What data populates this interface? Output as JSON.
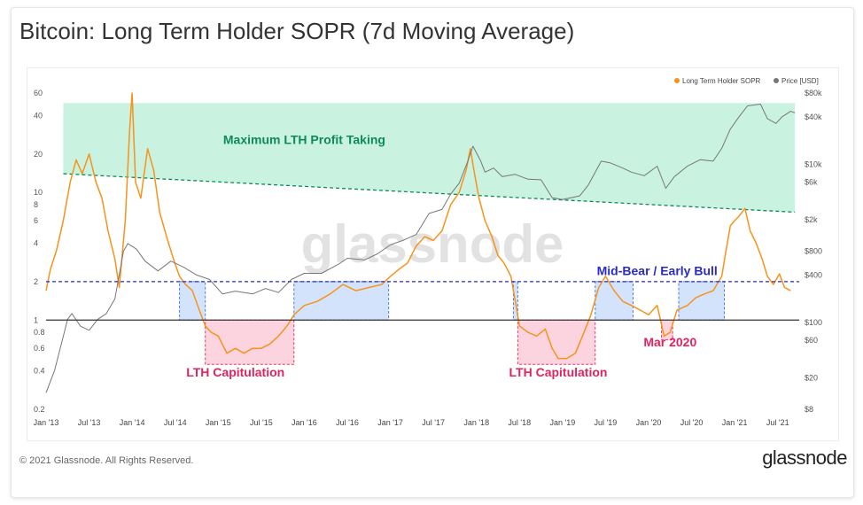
{
  "title": "Bitcoin: Long Term Holder SOPR (7d Moving Average)",
  "footer": "© 2021 Glassnode. All Rights Reserved.",
  "brand": "glassnode",
  "watermark": "glassnode",
  "chart_data": {
    "type": "line",
    "x_ticks": [
      "Jan '13",
      "Jul '13",
      "Jan '14",
      "Jul '14",
      "Jan '15",
      "Jul '15",
      "Jan '16",
      "Jul '16",
      "Jan '17",
      "Jul '17",
      "Jan '18",
      "Jul '18",
      "Jan '19",
      "Jul '19",
      "Jan '20",
      "Jul '20",
      "Jan '21",
      "Jul '21"
    ],
    "y_left_ticks": [
      "60",
      "40",
      "20",
      "10",
      "8",
      "6",
      "4",
      "2",
      "1",
      "0.8",
      "0.6",
      "0.4",
      "0.2"
    ],
    "y_left_scale": "log",
    "y_left_range": [
      0.2,
      60
    ],
    "y_right_ticks": [
      "$80k",
      "$40k",
      "$10k",
      "$6k",
      "$2k",
      "$800",
      "$400",
      "$100",
      "$60",
      "$20",
      "$8"
    ],
    "y_right_scale": "log",
    "y_right_range": [
      8,
      80000
    ],
    "legend": {
      "placement": "top-right",
      "entries": [
        "Long Term Holder SOPR",
        "Price [USD]"
      ]
    },
    "series": [
      {
        "name": "Long Term Holder SOPR",
        "color": "#f7931a",
        "values": [
          [
            2013.0,
            1.7
          ],
          [
            2013.05,
            2.5
          ],
          [
            2013.12,
            3.5
          ],
          [
            2013.2,
            6
          ],
          [
            2013.28,
            12
          ],
          [
            2013.35,
            18
          ],
          [
            2013.42,
            14
          ],
          [
            2013.5,
            20
          ],
          [
            2013.58,
            12
          ],
          [
            2013.65,
            9
          ],
          [
            2013.72,
            5
          ],
          [
            2013.8,
            3
          ],
          [
            2013.85,
            1.8
          ],
          [
            2013.92,
            6
          ],
          [
            2013.97,
            30
          ],
          [
            2014.0,
            60
          ],
          [
            2014.04,
            12
          ],
          [
            2014.1,
            9
          ],
          [
            2014.18,
            22
          ],
          [
            2014.25,
            15
          ],
          [
            2014.32,
            7
          ],
          [
            2014.4,
            4.5
          ],
          [
            2014.48,
            3
          ],
          [
            2014.55,
            2.2
          ],
          [
            2014.62,
            1.9
          ],
          [
            2014.7,
            1.7
          ],
          [
            2014.78,
            1.2
          ],
          [
            2014.85,
            0.9
          ],
          [
            2014.92,
            0.8
          ],
          [
            2015.0,
            0.75
          ],
          [
            2015.1,
            0.55
          ],
          [
            2015.2,
            0.6
          ],
          [
            2015.3,
            0.55
          ],
          [
            2015.4,
            0.6
          ],
          [
            2015.5,
            0.6
          ],
          [
            2015.6,
            0.65
          ],
          [
            2015.7,
            0.75
          ],
          [
            2015.8,
            0.9
          ],
          [
            2015.88,
            1.1
          ],
          [
            2016.0,
            1.3
          ],
          [
            2016.15,
            1.4
          ],
          [
            2016.3,
            1.6
          ],
          [
            2016.45,
            1.9
          ],
          [
            2016.6,
            1.7
          ],
          [
            2016.75,
            1.8
          ],
          [
            2016.9,
            1.9
          ],
          [
            2017.0,
            2.2
          ],
          [
            2017.1,
            2.5
          ],
          [
            2017.2,
            2.8
          ],
          [
            2017.3,
            3.8
          ],
          [
            2017.4,
            4.5
          ],
          [
            2017.5,
            4.2
          ],
          [
            2017.6,
            5
          ],
          [
            2017.7,
            8
          ],
          [
            2017.8,
            10
          ],
          [
            2017.88,
            15
          ],
          [
            2017.93,
            22
          ],
          [
            2017.97,
            15
          ],
          [
            2018.03,
            9
          ],
          [
            2018.1,
            6
          ],
          [
            2018.18,
            4.5
          ],
          [
            2018.25,
            3.2
          ],
          [
            2018.32,
            2.8
          ],
          [
            2018.4,
            2.2
          ],
          [
            2018.46,
            1.3
          ],
          [
            2018.5,
            0.9
          ],
          [
            2018.6,
            0.8
          ],
          [
            2018.7,
            0.75
          ],
          [
            2018.8,
            0.85
          ],
          [
            2018.88,
            0.6
          ],
          [
            2018.95,
            0.5
          ],
          [
            2019.05,
            0.5
          ],
          [
            2019.15,
            0.55
          ],
          [
            2019.25,
            0.8
          ],
          [
            2019.33,
            1.1
          ],
          [
            2019.42,
            1.8
          ],
          [
            2019.5,
            2.2
          ],
          [
            2019.6,
            1.7
          ],
          [
            2019.7,
            1.4
          ],
          [
            2019.8,
            1.3
          ],
          [
            2019.9,
            1.2
          ],
          [
            2020.0,
            1.1
          ],
          [
            2020.1,
            1.3
          ],
          [
            2020.18,
            0.75
          ],
          [
            2020.25,
            0.8
          ],
          [
            2020.33,
            1.2
          ],
          [
            2020.45,
            1.3
          ],
          [
            2020.55,
            1.5
          ],
          [
            2020.65,
            1.6
          ],
          [
            2020.75,
            1.7
          ],
          [
            2020.85,
            2.2
          ],
          [
            2020.9,
            3.5
          ],
          [
            2020.95,
            5.5
          ],
          [
            2021.0,
            6
          ],
          [
            2021.05,
            6.5
          ],
          [
            2021.12,
            7.5
          ],
          [
            2021.18,
            5
          ],
          [
            2021.25,
            4
          ],
          [
            2021.32,
            3
          ],
          [
            2021.38,
            2.2
          ],
          [
            2021.45,
            1.9
          ],
          [
            2021.52,
            2.3
          ],
          [
            2021.58,
            1.8
          ],
          [
            2021.65,
            1.7
          ]
        ]
      },
      {
        "name": "Price [USD]",
        "color": "#777777",
        "values": [
          [
            2013.0,
            13
          ],
          [
            2013.1,
            25
          ],
          [
            2013.25,
            110
          ],
          [
            2013.3,
            130
          ],
          [
            2013.4,
            90
          ],
          [
            2013.5,
            80
          ],
          [
            2013.6,
            110
          ],
          [
            2013.7,
            130
          ],
          [
            2013.8,
            200
          ],
          [
            2013.9,
            800
          ],
          [
            2013.95,
            1000
          ],
          [
            2014.05,
            850
          ],
          [
            2014.15,
            600
          ],
          [
            2014.3,
            450
          ],
          [
            2014.45,
            600
          ],
          [
            2014.6,
            500
          ],
          [
            2014.75,
            400
          ],
          [
            2014.9,
            350
          ],
          [
            2015.05,
            230
          ],
          [
            2015.2,
            250
          ],
          [
            2015.4,
            230
          ],
          [
            2015.55,
            270
          ],
          [
            2015.7,
            240
          ],
          [
            2015.85,
            350
          ],
          [
            2016.0,
            420
          ],
          [
            2016.2,
            420
          ],
          [
            2016.4,
            550
          ],
          [
            2016.5,
            650
          ],
          [
            2016.7,
            620
          ],
          [
            2016.85,
            740
          ],
          [
            2017.0,
            960
          ],
          [
            2017.15,
            1100
          ],
          [
            2017.3,
            1300
          ],
          [
            2017.45,
            2400
          ],
          [
            2017.6,
            2700
          ],
          [
            2017.7,
            4200
          ],
          [
            2017.8,
            5800
          ],
          [
            2017.9,
            11000
          ],
          [
            2017.96,
            17000
          ],
          [
            2018.05,
            11000
          ],
          [
            2018.1,
            8000
          ],
          [
            2018.2,
            9000
          ],
          [
            2018.3,
            7000
          ],
          [
            2018.45,
            7500
          ],
          [
            2018.6,
            6500
          ],
          [
            2018.75,
            6400
          ],
          [
            2018.88,
            3800
          ],
          [
            2019.0,
            3600
          ],
          [
            2019.2,
            4000
          ],
          [
            2019.3,
            5500
          ],
          [
            2019.45,
            11000
          ],
          [
            2019.55,
            10500
          ],
          [
            2019.7,
            9000
          ],
          [
            2019.8,
            8000
          ],
          [
            2019.95,
            7200
          ],
          [
            2020.1,
            9500
          ],
          [
            2020.2,
            5000
          ],
          [
            2020.3,
            7000
          ],
          [
            2020.45,
            9500
          ],
          [
            2020.6,
            11500
          ],
          [
            2020.75,
            11000
          ],
          [
            2020.85,
            16000
          ],
          [
            2020.95,
            28000
          ],
          [
            2021.05,
            40000
          ],
          [
            2021.15,
            55000
          ],
          [
            2021.3,
            58000
          ],
          [
            2021.38,
            38000
          ],
          [
            2021.48,
            33000
          ],
          [
            2021.55,
            40000
          ],
          [
            2021.65,
            47000
          ],
          [
            2021.7,
            45000
          ]
        ]
      }
    ],
    "reference_lines": [
      {
        "value": 2,
        "style": "dashed",
        "color": "#2929c7"
      },
      {
        "value": 1,
        "style": "solid",
        "color": "#333333"
      }
    ],
    "regions": [
      {
        "type": "max-profit",
        "label": "Maximum LTH Profit Taking",
        "color": "#0e8a5a",
        "fill": "#bff0dc"
      },
      {
        "type": "bear",
        "x": [
          2014.55,
          2014.85
        ],
        "y": [
          1,
          2
        ],
        "fill": "#cfe0fb",
        "stroke": "#3b6fe0"
      },
      {
        "type": "bear",
        "x": [
          2015.88,
          2016.98
        ],
        "y": [
          1,
          2
        ],
        "fill": "#cfe0fb",
        "stroke": "#3b6fe0"
      },
      {
        "type": "bear",
        "x": [
          2018.43,
          2018.48
        ],
        "y": [
          1,
          2
        ],
        "fill": "#cfe0fb",
        "stroke": "#3b6fe0"
      },
      {
        "type": "bear",
        "x": [
          2019.38,
          2019.82
        ],
        "y": [
          1,
          2
        ],
        "fill": "#cfe0fb",
        "stroke": "#3b6fe0"
      },
      {
        "type": "bear",
        "x": [
          2020.35,
          2020.88
        ],
        "y": [
          1,
          2
        ],
        "fill": "#cfe0fb",
        "stroke": "#3b6fe0"
      },
      {
        "type": "capitulation",
        "x": [
          2014.85,
          2015.88
        ],
        "y": [
          0.45,
          1
        ],
        "fill": "#fbd0dd",
        "stroke": "#e0245e"
      },
      {
        "type": "capitulation",
        "x": [
          2018.48,
          2019.38
        ],
        "y": [
          0.45,
          1
        ],
        "fill": "#fbd0dd",
        "stroke": "#e0245e"
      },
      {
        "type": "capitulation",
        "x": [
          2020.15,
          2020.28
        ],
        "y": [
          0.7,
          1
        ],
        "fill": "#fbd0dd",
        "stroke": "#e0245e"
      }
    ],
    "annotations": [
      {
        "text": "Maximum LTH Profit Taking",
        "color": "#0e8a5a"
      },
      {
        "text": "LTH Capitulation",
        "color": "#e0245e"
      },
      {
        "text": "LTH Capitulation",
        "color": "#e0245e"
      },
      {
        "text": "Mid-Bear / Early Bull",
        "color": "#2929c7"
      },
      {
        "text": "Mar 2020",
        "color": "#e0245e"
      }
    ]
  }
}
